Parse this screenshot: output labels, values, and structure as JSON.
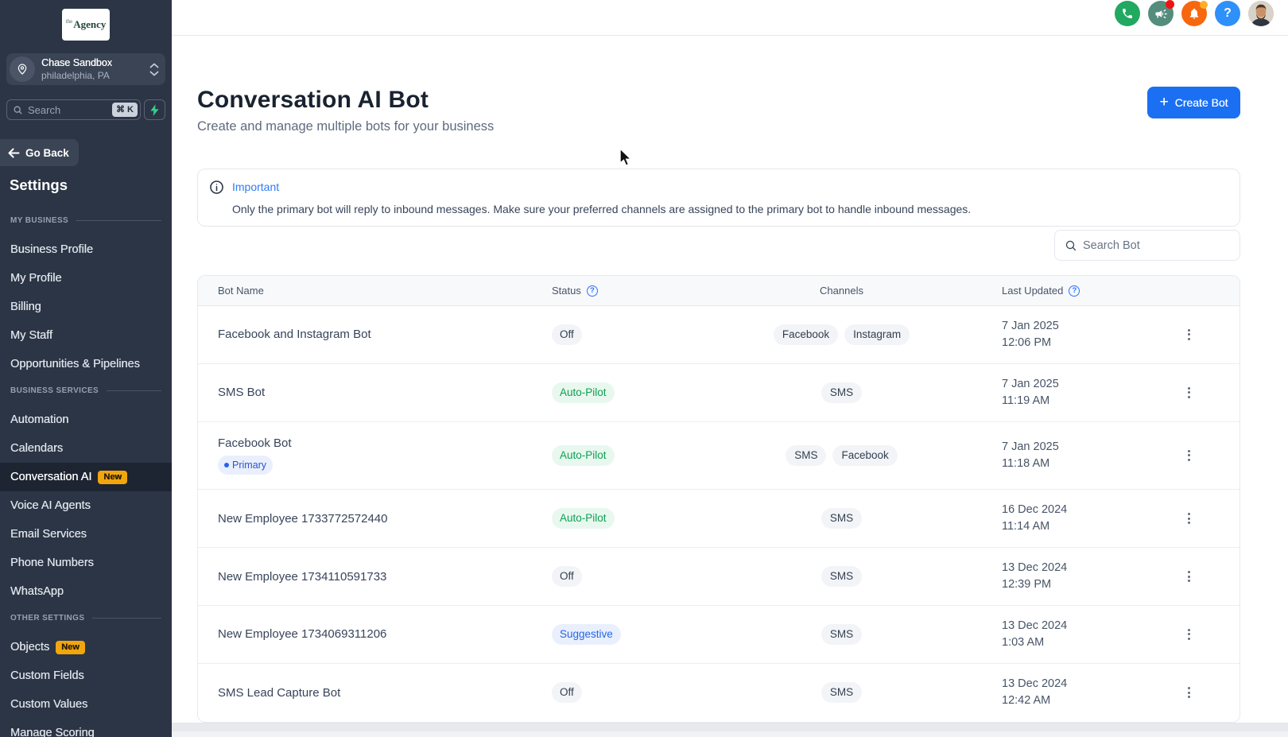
{
  "sidebar": {
    "logo_small": "the",
    "logo_text": "Agency",
    "location": {
      "name": "Chase Sandbox",
      "sub": "philadelphia, PA"
    },
    "search": {
      "placeholder": "Search",
      "shortcut": "⌘ K"
    },
    "go_back": "Go Back",
    "title": "Settings",
    "sections": [
      {
        "label": "MY BUSINESS",
        "items": [
          {
            "label": "Business Profile"
          },
          {
            "label": "My Profile"
          },
          {
            "label": "Billing"
          },
          {
            "label": "My Staff"
          },
          {
            "label": "Opportunities & Pipelines"
          }
        ]
      },
      {
        "label": "BUSINESS SERVICES",
        "items": [
          {
            "label": "Automation"
          },
          {
            "label": "Calendars"
          },
          {
            "label": "Conversation AI",
            "badge": "New",
            "active": true
          },
          {
            "label": "Voice AI Agents"
          },
          {
            "label": "Email Services"
          },
          {
            "label": "Phone Numbers"
          },
          {
            "label": "WhatsApp"
          }
        ]
      },
      {
        "label": "OTHER SETTINGS",
        "items": [
          {
            "label": "Objects",
            "badge": "New"
          },
          {
            "label": "Custom Fields"
          },
          {
            "label": "Custom Values"
          },
          {
            "label": "Manage Scoring"
          }
        ]
      }
    ]
  },
  "topbar": {
    "help_glyph": "?"
  },
  "page": {
    "title": "Conversation AI Bot",
    "subtitle": "Create and manage multiple bots for your business",
    "create_plus": "+",
    "create_button": "Create Bot",
    "alert": {
      "title": "Important",
      "body": "Only the primary bot will reply to inbound messages. Make sure your preferred channels are assigned to the primary bot to handle inbound messages."
    },
    "search_placeholder": "Search Bot",
    "help_glyph": "?"
  },
  "table": {
    "columns": {
      "name": "Bot Name",
      "status": "Status",
      "channels": "Channels",
      "updated": "Last Updated"
    },
    "primary_label": "Primary",
    "rows": [
      {
        "name": "Facebook and Instagram Bot",
        "primary": false,
        "status": "Off",
        "status_type": "off",
        "channels": [
          "Facebook",
          "Instagram"
        ],
        "date": "7 Jan 2025",
        "time": "12:06 PM"
      },
      {
        "name": "SMS Bot",
        "primary": false,
        "status": "Auto-Pilot",
        "status_type": "autopilot",
        "channels": [
          "SMS"
        ],
        "date": "7 Jan 2025",
        "time": "11:19 AM"
      },
      {
        "name": "Facebook Bot",
        "primary": true,
        "status": "Auto-Pilot",
        "status_type": "autopilot",
        "channels": [
          "SMS",
          "Facebook"
        ],
        "date": "7 Jan 2025",
        "time": "11:18 AM"
      },
      {
        "name": "New Employee 1733772572440",
        "primary": false,
        "status": "Auto-Pilot",
        "status_type": "autopilot",
        "channels": [
          "SMS"
        ],
        "date": "16 Dec 2024",
        "time": "11:14 AM"
      },
      {
        "name": "New Employee 1734110591733",
        "primary": false,
        "status": "Off",
        "status_type": "off",
        "channels": [
          "SMS"
        ],
        "date": "13 Dec 2024",
        "time": "12:39 PM"
      },
      {
        "name": "New Employee 1734069311206",
        "primary": false,
        "status": "Suggestive",
        "status_type": "suggestive",
        "channels": [
          "SMS"
        ],
        "date": "13 Dec 2024",
        "time": "1:03 AM"
      },
      {
        "name": "SMS Lead Capture Bot",
        "primary": false,
        "status": "Off",
        "status_type": "off",
        "channels": [
          "SMS"
        ],
        "date": "13 Dec 2024",
        "time": "12:42 AM"
      }
    ]
  }
}
